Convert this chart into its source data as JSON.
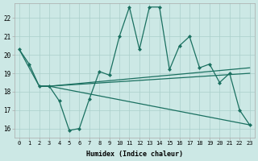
{
  "xlabel": "Humidex (Indice chaleur)",
  "xlim": [
    -0.5,
    23.5
  ],
  "ylim": [
    15.5,
    22.8
  ],
  "yticks": [
    16,
    17,
    18,
    19,
    20,
    21,
    22
  ],
  "xticks": [
    0,
    1,
    2,
    3,
    4,
    5,
    6,
    7,
    8,
    9,
    10,
    11,
    12,
    13,
    14,
    15,
    16,
    17,
    18,
    19,
    20,
    21,
    22,
    23
  ],
  "bg_color": "#cce8e5",
  "grid_color": "#aacfcb",
  "line_color": "#1a7060",
  "line1_x": [
    0,
    1,
    2,
    3,
    4,
    5,
    6,
    7,
    8,
    9,
    10,
    11,
    12,
    13,
    14,
    15,
    16,
    17,
    18,
    19,
    20,
    21,
    22,
    23
  ],
  "line1_y": [
    20.3,
    19.5,
    18.3,
    18.3,
    17.5,
    15.9,
    16.0,
    17.6,
    19.1,
    18.9,
    21.0,
    22.6,
    20.3,
    22.6,
    22.6,
    19.2,
    20.5,
    21.0,
    19.3,
    19.5,
    18.5,
    19.0,
    17.0,
    16.2
  ],
  "line2_x": [
    0,
    2,
    3,
    23
  ],
  "line2_y": [
    20.3,
    18.3,
    18.3,
    19.3
  ],
  "line3_x": [
    2,
    3,
    23
  ],
  "line3_y": [
    18.3,
    18.3,
    19.0
  ],
  "line4_x": [
    2,
    3,
    23
  ],
  "line4_y": [
    18.3,
    18.3,
    16.2
  ]
}
